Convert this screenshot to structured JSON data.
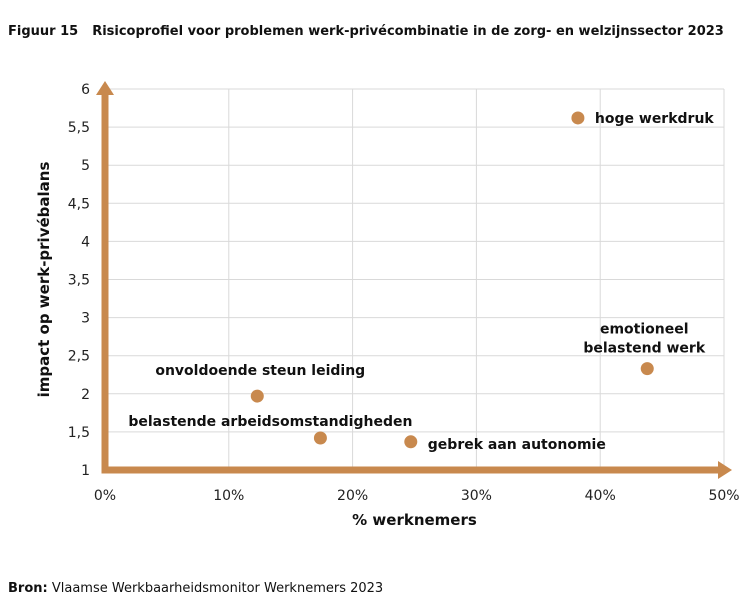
{
  "figure": {
    "number": "Figuur 15",
    "title": "Risicoprofiel voor problemen werk-privécombinatie in de zorg- en welzijnssector 2023"
  },
  "source": {
    "label": "Bron:",
    "text": "Vlaamse Werkbaarheidsmonitor Werknemers 2023"
  },
  "colors": {
    "accent": "#c8894e",
    "grid": "#d9d9d9"
  },
  "chart_data": {
    "type": "scatter",
    "xlabel": "% werknemers",
    "ylabel": "impact op werk-privébalans",
    "xlim": [
      0,
      50
    ],
    "ylim": [
      1,
      6
    ],
    "x_ticks": [
      0,
      10,
      20,
      30,
      40,
      50
    ],
    "x_tick_labels": [
      "0%",
      "10%",
      "20%",
      "30%",
      "40%",
      "50%"
    ],
    "y_ticks": [
      1,
      1.5,
      2,
      2.5,
      3,
      3.5,
      4,
      4.5,
      5,
      5.5,
      6
    ],
    "y_tick_labels": [
      "1",
      "1,5",
      "2",
      "2,5",
      "3",
      "3,5",
      "4",
      "4,5",
      "5",
      "5,5",
      "6"
    ],
    "grid": true,
    "points": [
      {
        "label": "hoge werkdruk",
        "x": 38.2,
        "y": 5.62
      },
      {
        "label": "emotioneel belastend werk",
        "label_lines": [
          "emotioneel",
          "belastend werk"
        ],
        "x": 43.8,
        "y": 2.33
      },
      {
        "label": "onvoldoende steun leiding",
        "x": 12.3,
        "y": 1.97
      },
      {
        "label": "belastende arbeidsomstandigheden",
        "x": 17.4,
        "y": 1.42
      },
      {
        "label": "gebrek aan autonomie",
        "x": 24.7,
        "y": 1.37
      }
    ]
  }
}
